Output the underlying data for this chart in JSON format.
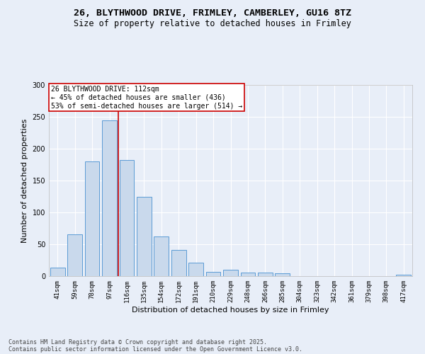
{
  "title_line1": "26, BLYTHWOOD DRIVE, FRIMLEY, CAMBERLEY, GU16 8TZ",
  "title_line2": "Size of property relative to detached houses in Frimley",
  "xlabel": "Distribution of detached houses by size in Frimley",
  "ylabel": "Number of detached properties",
  "categories": [
    "41sqm",
    "59sqm",
    "78sqm",
    "97sqm",
    "116sqm",
    "135sqm",
    "154sqm",
    "172sqm",
    "191sqm",
    "210sqm",
    "229sqm",
    "248sqm",
    "266sqm",
    "285sqm",
    "304sqm",
    "323sqm",
    "342sqm",
    "361sqm",
    "379sqm",
    "398sqm",
    "417sqm"
  ],
  "values": [
    13,
    66,
    180,
    245,
    182,
    124,
    62,
    41,
    21,
    7,
    10,
    6,
    6,
    4,
    0,
    0,
    0,
    0,
    0,
    0,
    2
  ],
  "bar_color": "#c9d9ec",
  "bar_edge_color": "#5b9bd5",
  "annotation_text_line1": "26 BLYTHWOOD DRIVE: 112sqm",
  "annotation_text_line2": "← 45% of detached houses are smaller (436)",
  "annotation_text_line3": "53% of semi-detached houses are larger (514) →",
  "annotation_box_facecolor": "#ffffff",
  "annotation_box_edgecolor": "#cc0000",
  "vline_color": "#cc0000",
  "ylim": [
    0,
    300
  ],
  "yticks": [
    0,
    50,
    100,
    150,
    200,
    250,
    300
  ],
  "bg_color": "#e8eef8",
  "plot_bg_color": "#e8eef8",
  "footer_line1": "Contains HM Land Registry data © Crown copyright and database right 2025.",
  "footer_line2": "Contains public sector information licensed under the Open Government Licence v3.0.",
  "title_fontsize": 9.5,
  "subtitle_fontsize": 8.5,
  "tick_fontsize": 6.5,
  "ylabel_fontsize": 8,
  "xlabel_fontsize": 8,
  "annotation_fontsize": 7,
  "footer_fontsize": 6
}
